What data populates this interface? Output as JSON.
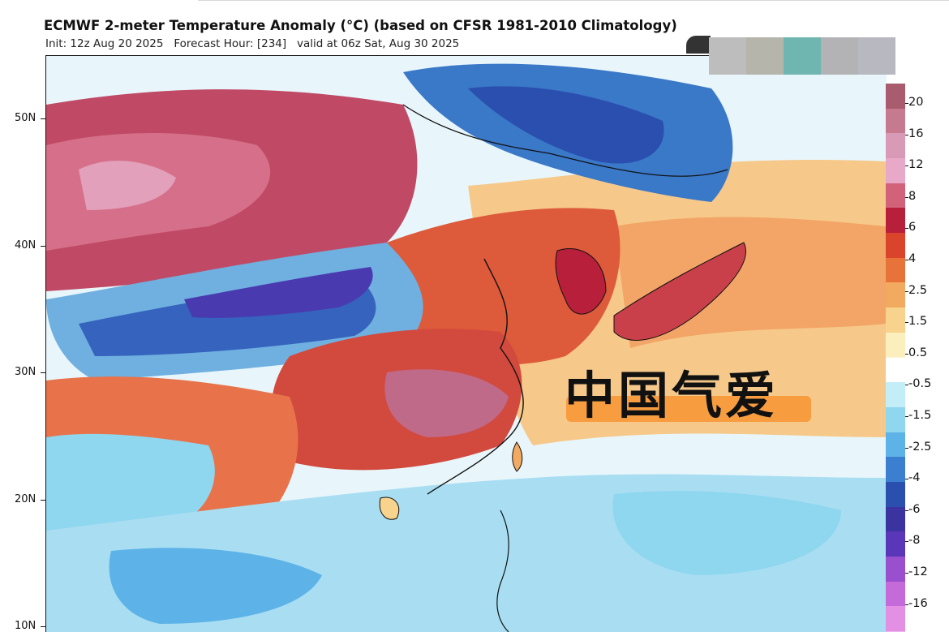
{
  "header": {
    "title": "ECMWF 2-meter Temperature Anomaly (°C) (based on CFSR 1981-2010 Climatology)",
    "subtitle": "Init: 12z Aug 20 2025   Forecast Hour: [234]   valid at 06z Sat, Aug 30 2025"
  },
  "map": {
    "latitude_labels": [
      "50N",
      "40N",
      "30N",
      "20N",
      "10N"
    ]
  },
  "colorbar": {
    "labels": [
      "20",
      "16",
      "12",
      "8",
      "6",
      "4",
      "2.5",
      "1.5",
      "0.5",
      "-0.5",
      "-1.5",
      "-2.5",
      "-4",
      "-6",
      "-8",
      "-12",
      "-16",
      "-20"
    ],
    "colors": [
      "#a85c6e",
      "#c67a8f",
      "#d99ab8",
      "#e8a9c9",
      "#d2617a",
      "#b81f3a",
      "#d9442a",
      "#e8733a",
      "#f2a960",
      "#f7d38d",
      "#fbefbd",
      "#ffffff",
      "#c4eef7",
      "#8fd6ef",
      "#5db3e8",
      "#3a7fd0",
      "#2a4fae",
      "#3a33a0",
      "#5a37b8",
      "#9a4fcf",
      "#c56ad9",
      "#e38fe4"
    ]
  },
  "overlays": {
    "watermark_text": "中国气爱",
    "strip_colors": [
      "#bdbdbd",
      "#b5b5ab",
      "#6fb5b0",
      "#b3b3b6",
      "#b8b8c0"
    ]
  }
}
